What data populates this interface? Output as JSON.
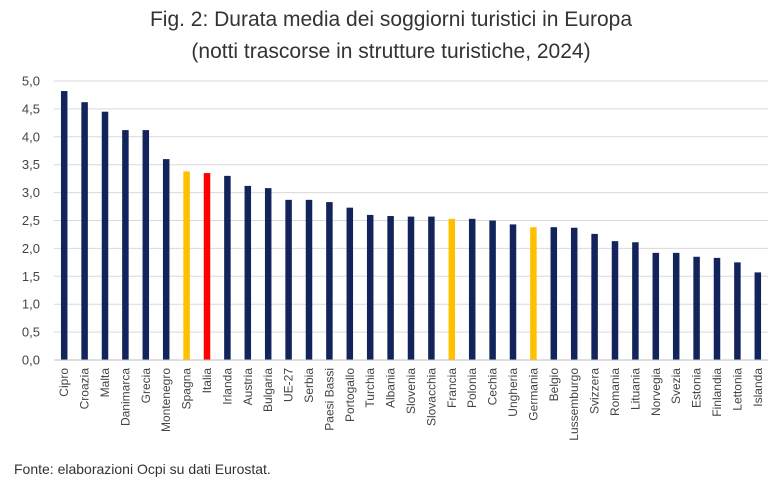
{
  "chart_data": {
    "type": "bar",
    "title": "Fig. 2: Durata media dei soggiorni turistici in Europa",
    "subtitle": "(notti trascorse in strutture turistiche, 2024)",
    "xlabel": "",
    "ylabel": "",
    "ylim": [
      0,
      5
    ],
    "yticks": [
      "0,0",
      "0,5",
      "1,0",
      "1,5",
      "2,0",
      "2,5",
      "3,0",
      "3,5",
      "4,0",
      "4,5",
      "5,0"
    ],
    "grid": true,
    "legend": "none",
    "categories": [
      "Cipro",
      "Croazia",
      "Malta",
      "Danimarca",
      "Grecia",
      "Montenegro",
      "Spagna",
      "Italia",
      "Irlanda",
      "Austria",
      "Bulgaria",
      "UE-27",
      "Serbia",
      "Paesi Bassi",
      "Portogallo",
      "Turchia",
      "Albania",
      "Slovenia",
      "Slovacchia",
      "Francia",
      "Polonia",
      "Cechia",
      "Ungheria",
      "Germania",
      "Belgio",
      "Lussemburgo",
      "Svizzera",
      "Romania",
      "Lituania",
      "Norvegia",
      "Svezia",
      "Estonia",
      "Finlandia",
      "Lettonia",
      "Islanda"
    ],
    "values": [
      4.82,
      4.62,
      4.45,
      4.12,
      4.12,
      3.6,
      3.38,
      3.35,
      3.3,
      3.12,
      3.08,
      2.87,
      2.87,
      2.83,
      2.73,
      2.6,
      2.58,
      2.57,
      2.57,
      2.53,
      2.53,
      2.5,
      2.43,
      2.38,
      2.38,
      2.37,
      2.26,
      2.13,
      2.11,
      1.92,
      1.92,
      1.85,
      1.83,
      1.75,
      1.57
    ],
    "colors": {
      "default": "#13235b",
      "highlight": "#ffc000",
      "italy": "#ff0000"
    },
    "bar_colors": [
      "default",
      "default",
      "default",
      "default",
      "default",
      "default",
      "highlight",
      "italy",
      "default",
      "default",
      "default",
      "default",
      "default",
      "default",
      "default",
      "default",
      "default",
      "default",
      "default",
      "highlight",
      "default",
      "default",
      "default",
      "highlight",
      "default",
      "default",
      "default",
      "default",
      "default",
      "default",
      "default",
      "default",
      "default",
      "default",
      "default"
    ]
  },
  "footer": {
    "source": "Fonte: elaborazioni Ocpi su dati Eurostat."
  }
}
